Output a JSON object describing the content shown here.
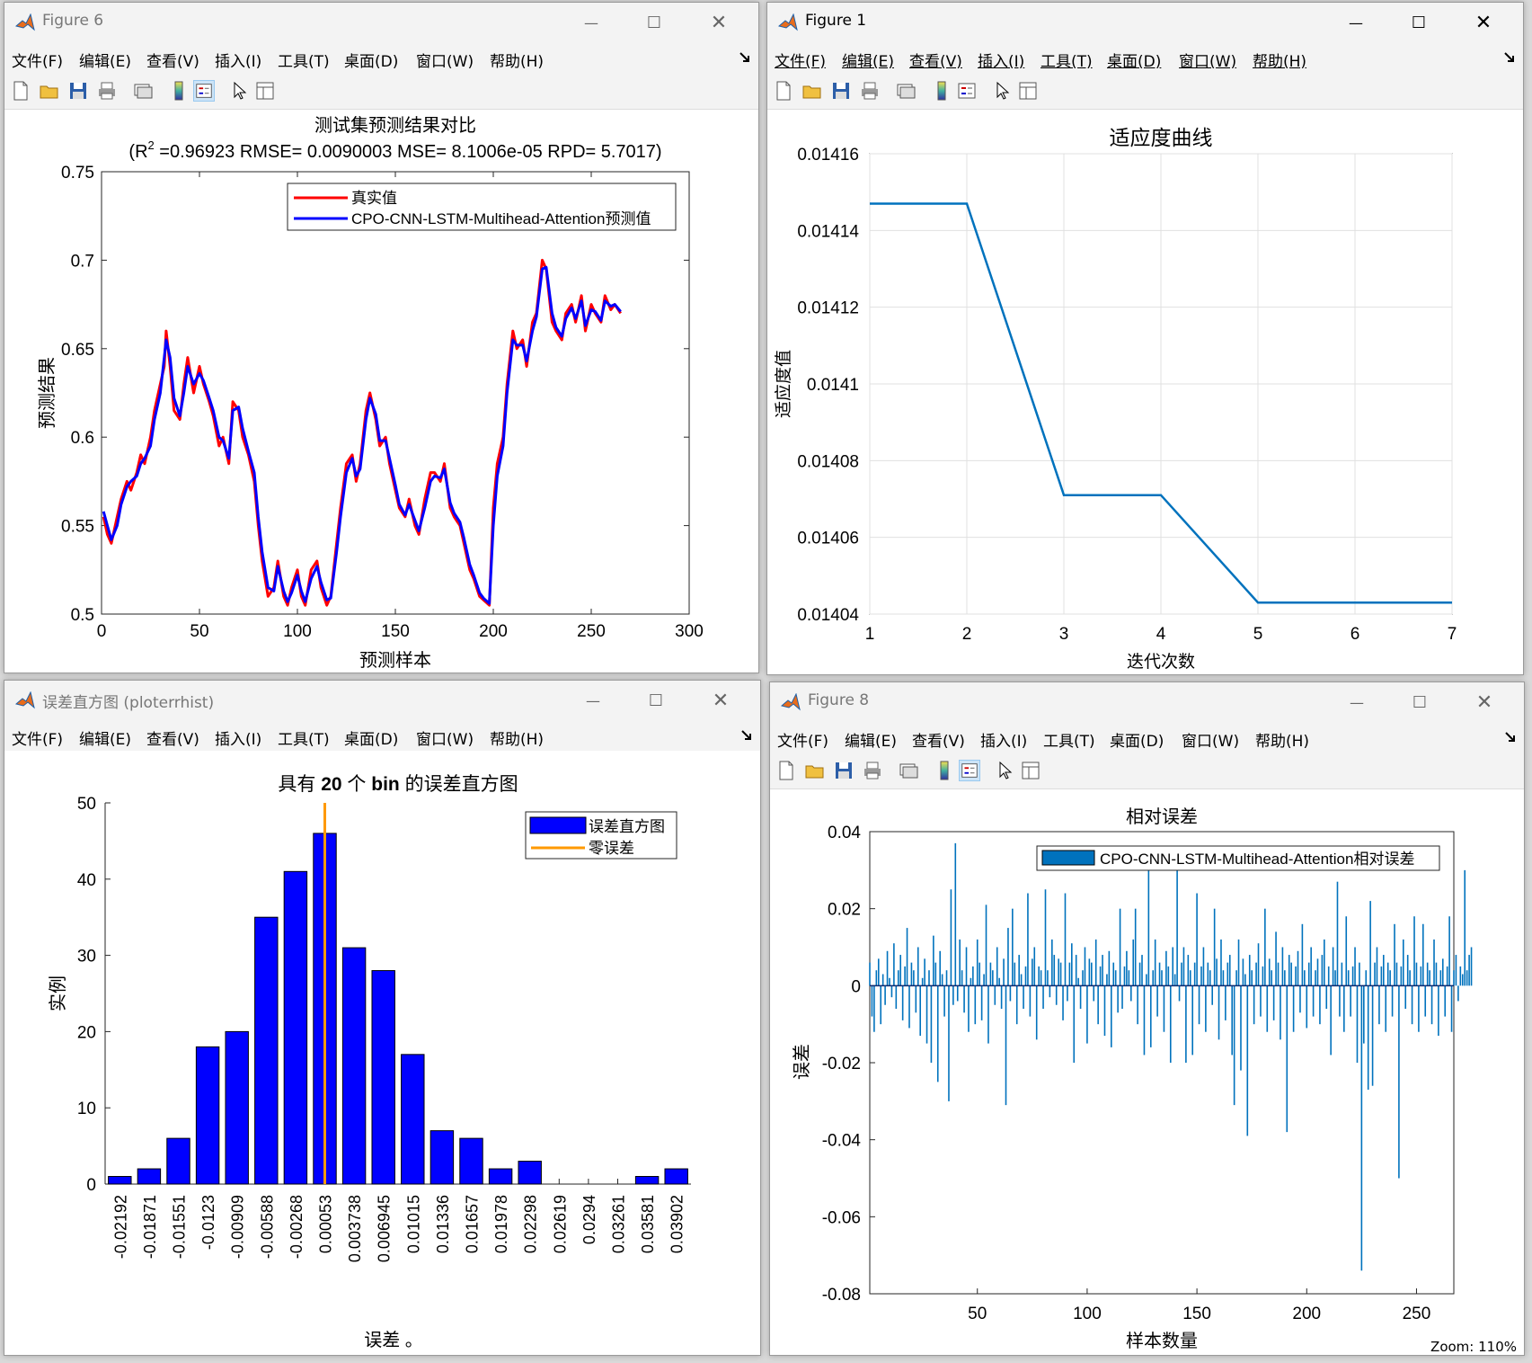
{
  "menu": [
    "文件(F)",
    "编辑(E)",
    "查看(V)",
    "插入(I)",
    "工具(T)",
    "桌面(D)",
    "窗口(W)",
    "帮助(H)"
  ],
  "colors": {
    "matlab_blue": "#0072bd",
    "true_red": "#ff0000",
    "pred_blue": "#0000ff",
    "orange": "#ff9900",
    "accent": "#cce4f7"
  },
  "windows": {
    "fig6": {
      "title": "Figure 6"
    },
    "fig1": {
      "title": "Figure 1"
    },
    "hist": {
      "title": "误差直方图 (ploterrhist)"
    },
    "fig8": {
      "title": "Figure 8"
    }
  },
  "status": {
    "zoom": "Zoom: 110%"
  },
  "chart_data": [
    {
      "id": "fig6",
      "type": "line",
      "title": "测试集预测结果对比",
      "subtitle_prefix": "(R",
      "subtitle_sup": "2",
      "subtitle_rest": " =0.96923 RMSE= 0.0090003 MSE= 8.1006e-05 RPD= 5.7017)",
      "xlabel": "预测样本",
      "ylabel": "预测结果",
      "xlim": [
        0,
        300
      ],
      "ylim": [
        0.5,
        0.75
      ],
      "xticks": [
        0,
        50,
        100,
        150,
        200,
        250,
        300
      ],
      "yticks": [
        0.5,
        0.55,
        0.6,
        0.65,
        0.7,
        0.75
      ],
      "legend": [
        "真实值",
        "CPO-CNN-LSTM-Multihead-Attention预测值"
      ],
      "series": [
        {
          "name": "真实值",
          "color": "#ff0000",
          "x": [
            1,
            3,
            5,
            8,
            10,
            13,
            15,
            18,
            20,
            22,
            25,
            27,
            30,
            32,
            33,
            35,
            37,
            40,
            42,
            44,
            47,
            50,
            52,
            55,
            57,
            60,
            62,
            65,
            67,
            70,
            72,
            75,
            78,
            80,
            82,
            85,
            88,
            90,
            93,
            95,
            97,
            100,
            102,
            104,
            107,
            110,
            112,
            115,
            117,
            120,
            122,
            125,
            128,
            130,
            132,
            135,
            137,
            140,
            142,
            145,
            147,
            150,
            152,
            155,
            157,
            160,
            162,
            165,
            168,
            170,
            173,
            175,
            178,
            180,
            183,
            185,
            188,
            190,
            193,
            195,
            198,
            200,
            202,
            205,
            207,
            210,
            212,
            215,
            217,
            220,
            222,
            225,
            227,
            230,
            232,
            235,
            237,
            240,
            242,
            245,
            247,
            250,
            252,
            255,
            257,
            260,
            262,
            265
          ],
          "y": [
            0.555,
            0.545,
            0.54,
            0.555,
            0.565,
            0.575,
            0.57,
            0.58,
            0.59,
            0.585,
            0.6,
            0.615,
            0.63,
            0.64,
            0.66,
            0.64,
            0.615,
            0.61,
            0.63,
            0.645,
            0.625,
            0.64,
            0.63,
            0.62,
            0.612,
            0.595,
            0.6,
            0.585,
            0.62,
            0.615,
            0.6,
            0.59,
            0.575,
            0.55,
            0.53,
            0.51,
            0.515,
            0.53,
            0.51,
            0.505,
            0.515,
            0.525,
            0.51,
            0.505,
            0.525,
            0.53,
            0.515,
            0.505,
            0.51,
            0.54,
            0.56,
            0.585,
            0.59,
            0.575,
            0.585,
            0.615,
            0.625,
            0.61,
            0.595,
            0.6,
            0.585,
            0.57,
            0.56,
            0.555,
            0.565,
            0.55,
            0.545,
            0.565,
            0.58,
            0.58,
            0.575,
            0.585,
            0.56,
            0.555,
            0.55,
            0.54,
            0.525,
            0.52,
            0.51,
            0.508,
            0.505,
            0.56,
            0.585,
            0.6,
            0.63,
            0.66,
            0.65,
            0.655,
            0.64,
            0.665,
            0.67,
            0.7,
            0.695,
            0.665,
            0.66,
            0.655,
            0.67,
            0.675,
            0.665,
            0.68,
            0.66,
            0.675,
            0.67,
            0.665,
            0.68,
            0.672,
            0.675,
            0.67
          ]
        },
        {
          "name": "CPO-CNN-LSTM-Multihead-Attention预测值",
          "color": "#0000ff",
          "x": [
            1,
            3,
            5,
            8,
            10,
            13,
            15,
            18,
            20,
            22,
            25,
            27,
            30,
            32,
            33,
            35,
            37,
            40,
            42,
            44,
            47,
            50,
            52,
            55,
            57,
            60,
            62,
            65,
            67,
            70,
            72,
            75,
            78,
            80,
            82,
            85,
            88,
            90,
            93,
            95,
            97,
            100,
            102,
            104,
            107,
            110,
            112,
            115,
            117,
            120,
            122,
            125,
            128,
            130,
            132,
            135,
            137,
            140,
            142,
            145,
            147,
            150,
            152,
            155,
            157,
            160,
            162,
            165,
            168,
            170,
            173,
            175,
            178,
            180,
            183,
            185,
            188,
            190,
            193,
            195,
            198,
            200,
            202,
            205,
            207,
            210,
            212,
            215,
            217,
            220,
            222,
            225,
            227,
            230,
            232,
            235,
            237,
            240,
            242,
            245,
            247,
            250,
            252,
            255,
            257,
            260,
            262,
            265
          ],
          "y": [
            0.558,
            0.55,
            0.542,
            0.55,
            0.562,
            0.572,
            0.575,
            0.578,
            0.585,
            0.588,
            0.595,
            0.61,
            0.625,
            0.645,
            0.655,
            0.645,
            0.622,
            0.612,
            0.625,
            0.64,
            0.63,
            0.636,
            0.632,
            0.622,
            0.615,
            0.6,
            0.598,
            0.588,
            0.615,
            0.617,
            0.605,
            0.592,
            0.58,
            0.555,
            0.535,
            0.515,
            0.513,
            0.527,
            0.513,
            0.507,
            0.512,
            0.522,
            0.513,
            0.507,
            0.52,
            0.527,
            0.518,
            0.508,
            0.509,
            0.535,
            0.555,
            0.58,
            0.588,
            0.578,
            0.582,
            0.61,
            0.622,
            0.613,
            0.598,
            0.598,
            0.588,
            0.573,
            0.562,
            0.556,
            0.562,
            0.553,
            0.547,
            0.56,
            0.575,
            0.578,
            0.577,
            0.582,
            0.563,
            0.557,
            0.552,
            0.543,
            0.528,
            0.522,
            0.512,
            0.509,
            0.506,
            0.55,
            0.578,
            0.595,
            0.625,
            0.655,
            0.652,
            0.652,
            0.643,
            0.66,
            0.668,
            0.695,
            0.696,
            0.67,
            0.662,
            0.657,
            0.667,
            0.673,
            0.667,
            0.677,
            0.663,
            0.672,
            0.671,
            0.666,
            0.677,
            0.674,
            0.675,
            0.671
          ]
        }
      ]
    },
    {
      "id": "fig1",
      "type": "line",
      "title": "适应度曲线",
      "xlabel": "迭代次数",
      "ylabel": "适应度值",
      "xlim": [
        1,
        7
      ],
      "ylim": [
        0.01404,
        0.01416
      ],
      "xticks": [
        1,
        2,
        3,
        4,
        5,
        6,
        7
      ],
      "yticks": [
        "0.01404",
        "0.01406",
        "0.01408",
        "0.0141",
        "0.01412",
        "0.01414",
        "0.01416"
      ],
      "grid": true,
      "x": [
        1,
        2,
        3,
        4,
        5,
        6,
        7
      ],
      "y": [
        0.014147,
        0.014147,
        0.014071,
        0.014071,
        0.014043,
        0.014043,
        0.014043
      ]
    },
    {
      "id": "hist",
      "type": "bar",
      "title": "具有 20 个 bin 的误差直方图",
      "title_parts": [
        "具有 ",
        "20",
        " 个 ",
        "bin",
        " 的误差直方图"
      ],
      "xlabel": "误差 。",
      "ylabel": "实例",
      "ylim": [
        0,
        50
      ],
      "yticks": [
        0,
        10,
        20,
        30,
        40,
        50
      ],
      "categories": [
        "-0.02192",
        "-0.01871",
        "-0.01551",
        "-0.0123",
        "-0.00909",
        "-0.00588",
        "-0.00268",
        "0.00053",
        "0.003738",
        "0.006945",
        "0.01015",
        "0.01336",
        "0.01657",
        "0.01978",
        "0.02298",
        "0.02619",
        "0.0294",
        "0.03261",
        "0.03581",
        "0.03902"
      ],
      "values": [
        1,
        2,
        6,
        18,
        20,
        35,
        41,
        46,
        31,
        28,
        17,
        7,
        6,
        2,
        3,
        0,
        0,
        0,
        1,
        2
      ],
      "zero_error_at_bin": 7,
      "legend": [
        "误差直方图",
        "零误差"
      ]
    },
    {
      "id": "fig8",
      "type": "bar",
      "title": "相对误差",
      "xlabel": "样本数量",
      "ylabel": "误差",
      "xlim": [
        1,
        267
      ],
      "ylim": [
        -0.08,
        0.04
      ],
      "xticks": [
        50,
        100,
        150,
        200,
        250
      ],
      "yticks": [
        "-0.08",
        "-0.06",
        "-0.04",
        "-0.02",
        "0",
        "0.02",
        "0.04"
      ],
      "legend": [
        "CPO-CNN-LSTM-Multihead-Attention相对误差"
      ],
      "values": [
        0.006,
        -0.008,
        -0.012,
        0.004,
        0.007,
        -0.01,
        0.003,
        -0.005,
        0.009,
        0.002,
        -0.003,
        0.011,
        -0.006,
        0.004,
        0.008,
        -0.009,
        0.005,
        0.015,
        -0.011,
        0.006,
        0.004,
        -0.007,
        0.01,
        -0.013,
        0.002,
        0.007,
        -0.015,
        0.004,
        -0.02,
        0.013,
        0.006,
        -0.025,
        0.009,
        0.003,
        -0.008,
        0.004,
        -0.03,
        0.025,
        -0.005,
        0.037,
        -0.004,
        0.012,
        0.004,
        -0.007,
        0.01,
        -0.012,
        0.002,
        0.005,
        -0.01,
        0.012,
        0.006,
        -0.009,
        0.003,
        0.021,
        -0.015,
        0.006,
        0.004,
        -0.005,
        0.01,
        0.002,
        -0.006,
        0.007,
        -0.031,
        0.015,
        -0.004,
        0.02,
        0.006,
        -0.01,
        0.008,
        0.003,
        -0.006,
        0.005,
        0.024,
        -0.008,
        0.007,
        0.01,
        -0.014,
        0.005,
        0.004,
        -0.006,
        0.025,
        0.004,
        -0.003,
        0.012,
        0.008,
        -0.005,
        0.007,
        0.006,
        -0.009,
        0.024,
        -0.004,
        0.006,
        0.011,
        -0.02,
        0.008,
        0.002,
        -0.006,
        0.004,
        0.01,
        -0.015,
        0.007,
        0.006,
        -0.004,
        0.012,
        -0.01,
        0.005,
        0.008,
        -0.013,
        0.003,
        0.009,
        -0.016,
        0.006,
        0.004,
        -0.007,
        0.02,
        -0.006,
        0.005,
        0.009,
        0.004,
        -0.004,
        0.012,
        0.02,
        -0.01,
        0.006,
        0.008,
        -0.018,
        0.003,
        0.03,
        -0.016,
        0.004,
        0.012,
        -0.008,
        0.006,
        0.004,
        -0.012,
        0.009,
        0.005,
        -0.02,
        0.01,
        0.003,
        0.034,
        -0.004,
        0.006,
        0.01,
        -0.02,
        0.008,
        0.004,
        -0.018,
        0.006,
        0.024,
        -0.01,
        0.005,
        0.01,
        -0.012,
        0.006,
        0.004,
        -0.005,
        0.02,
        0.007,
        -0.014,
        0.012,
        0.004,
        -0.009,
        0.006,
        0.008,
        -0.018,
        -0.031,
        0.004,
        0.012,
        -0.022,
        0.007,
        0.003,
        -0.039,
        0.008,
        0.004,
        -0.01,
        0.006,
        0.011,
        -0.008,
        0.005,
        0.02,
        -0.012,
        0.007,
        0.004,
        -0.009,
        0.014,
        0.006,
        -0.014,
        0.01,
        0.004,
        -0.038,
        0.008,
        0.006,
        -0.012,
        0.005,
        0.009,
        -0.007,
        0.016,
        0.004,
        -0.011,
        0.006,
        0.01,
        -0.008,
        0.004,
        0.007,
        -0.01,
        0.008,
        0.012,
        -0.006,
        0.005,
        -0.018,
        0.01,
        0.004,
        0.027,
        -0.008,
        0.006,
        -0.012,
        0.018,
        0.004,
        -0.008,
        0.005,
        0.01,
        -0.02,
        0.006,
        -0.074,
        -0.015,
        0.004,
        -0.027,
        0.022,
        -0.026,
        0.006,
        0.01,
        -0.01,
        0.005,
        0.008,
        -0.012,
        0.006,
        0.004,
        -0.008,
        0.016,
        0.006,
        -0.05,
        0.005,
        0.012,
        -0.006,
        0.008,
        0.004,
        -0.01,
        0.018,
        0.006,
        -0.012,
        0.005,
        0.016,
        -0.008,
        0.006,
        0.004,
        -0.01,
        0.012,
        0.006,
        -0.013,
        0.004,
        0.007,
        -0.008,
        0.005,
        0.018,
        -0.012,
        0.004,
        0.008,
        -0.004,
        0.005,
        0.003,
        0.03,
        0.004,
        0.008,
        0.01
      ]
    }
  ]
}
